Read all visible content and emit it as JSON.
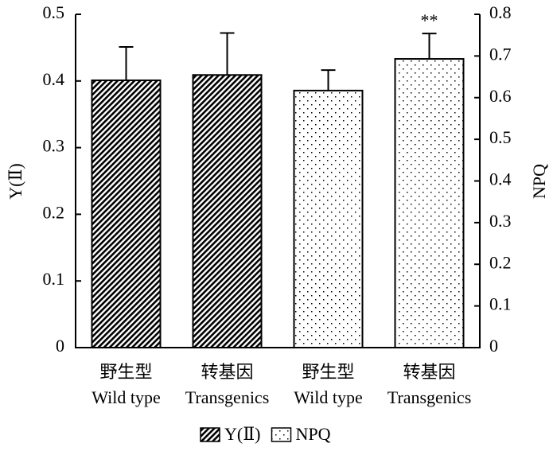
{
  "chart_data": {
    "type": "bar",
    "categories": [
      [
        "野生型",
        "Wild type"
      ],
      [
        "转基因",
        "Transgenics"
      ],
      [
        "野生型",
        "Wild type"
      ],
      [
        "转基因",
        "Transgenics"
      ]
    ],
    "ylabel": "Y(Ⅱ)",
    "y2label": "NPQ",
    "ylim": [
      0,
      0.5
    ],
    "yticks": [
      0,
      0.1,
      0.2,
      0.3,
      0.4,
      0.5
    ],
    "y2lim": [
      0,
      0.8
    ],
    "y2ticks": [
      0,
      0.1,
      0.2,
      0.3,
      0.4,
      0.5,
      0.6,
      0.7,
      0.8
    ],
    "series": [
      {
        "name": "Y(Ⅱ)",
        "color": "#000000",
        "pattern": "hatch",
        "values": [
          0.401,
          0.409,
          null,
          null
        ],
        "errors": [
          0.05,
          0.063,
          null,
          null
        ]
      },
      {
        "name": "NPQ",
        "color": "#000000",
        "pattern": "dots",
        "axis": "y2",
        "values": [
          null,
          null,
          0.617,
          0.693
        ],
        "errors": [
          null,
          null,
          0.049,
          0.061
        ],
        "annotations": [
          null,
          null,
          null,
          "**"
        ]
      }
    ],
    "legend": "bottom"
  }
}
